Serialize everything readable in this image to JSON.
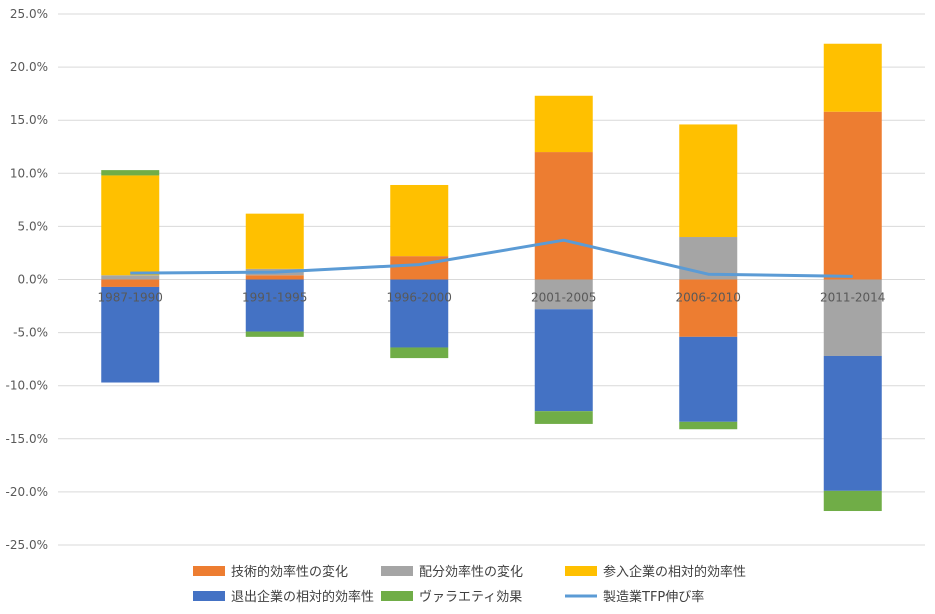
{
  "chart_data": {
    "type": "bar",
    "stacked": true,
    "categories": [
      "1987-1990",
      "1991-1995",
      "1996-2000",
      "2001-2005",
      "2006-2010",
      "2011-2014"
    ],
    "ylim": [
      -25,
      25
    ],
    "yticks": [
      25,
      20,
      15,
      10,
      5,
      0,
      -5,
      -10,
      -15,
      -20,
      -25
    ],
    "ytick_labels": [
      "25.0%",
      "20.0%",
      "15.0%",
      "10.0%",
      "5.0%",
      "0.0%",
      "-5.0%",
      "-10.0%",
      "-15.0%",
      "-20.0%",
      "-25.0%"
    ],
    "grid": true,
    "legend_position": "bottom",
    "series": [
      {
        "name": "技術的効率性の変化",
        "kind": "bar",
        "color": "#ED7D31",
        "values": [
          -0.7,
          0.4,
          2.2,
          12.0,
          -5.4,
          15.8
        ]
      },
      {
        "name": "配分効率性の変化",
        "kind": "bar",
        "color": "#A5A5A5",
        "values": [
          0.4,
          0.6,
          0.0,
          -2.8,
          4.0,
          -7.2
        ]
      },
      {
        "name": "参入企業の相対的効率性",
        "kind": "bar",
        "color": "#FFC000",
        "values": [
          9.4,
          5.2,
          6.7,
          5.3,
          10.6,
          6.4
        ]
      },
      {
        "name": "退出企業の相対的効率性",
        "kind": "bar",
        "color": "#4472C4",
        "values": [
          -9.0,
          -4.9,
          -6.4,
          -9.6,
          -8.0,
          -12.7
        ]
      },
      {
        "name": "ヴァラエティ効果",
        "kind": "bar",
        "color": "#70AD47",
        "values": [
          0.5,
          -0.5,
          -1.0,
          -1.2,
          -0.7,
          -1.9
        ]
      },
      {
        "name": "製造業TFP伸び率",
        "kind": "line",
        "color": "#5B9BD5",
        "values": [
          0.6,
          0.7,
          1.4,
          3.7,
          0.5,
          0.3
        ]
      }
    ]
  }
}
